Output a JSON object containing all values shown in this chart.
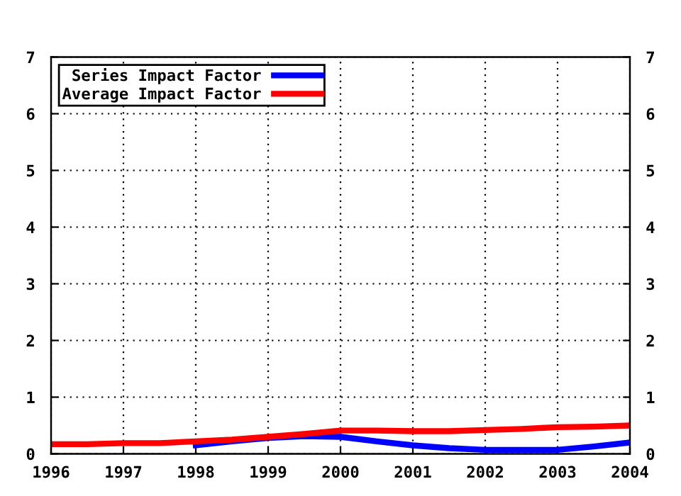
{
  "chart_data": {
    "type": "line",
    "x": [
      1996,
      1996.5,
      1997,
      1997.5,
      1998,
      1998.5,
      1999,
      1999.5,
      2000,
      2000.5,
      2001,
      2001.5,
      2002,
      2002.5,
      2003,
      2003.5,
      2004
    ],
    "series": [
      {
        "name": "Series Impact Factor",
        "color": "#0000ff",
        "values": [
          null,
          null,
          null,
          null,
          0.15,
          0.22,
          0.28,
          0.31,
          0.3,
          0.22,
          0.15,
          0.1,
          0.07,
          0.07,
          0.07,
          0.13,
          0.2
        ]
      },
      {
        "name": "Average Impact Factor",
        "color": "#ff0000",
        "values": [
          0.17,
          0.17,
          0.19,
          0.19,
          0.22,
          0.25,
          0.3,
          0.35,
          0.41,
          0.41,
          0.4,
          0.4,
          0.42,
          0.44,
          0.47,
          0.48,
          0.5
        ]
      }
    ],
    "xlim": [
      1996,
      2004
    ],
    "xticks": [
      1996,
      1997,
      1998,
      1999,
      2000,
      2001,
      2002,
      2003,
      2004
    ],
    "ylim": [
      0,
      7
    ],
    "yticks": [
      0,
      1,
      2,
      3,
      4,
      5,
      6,
      7
    ],
    "y2lim": [
      0,
      7
    ],
    "y2ticks": [
      0,
      1,
      2,
      3,
      4,
      5,
      6,
      7
    ],
    "grid": true,
    "legend": "top left",
    "marker": "none",
    "line_style": "solid"
  }
}
